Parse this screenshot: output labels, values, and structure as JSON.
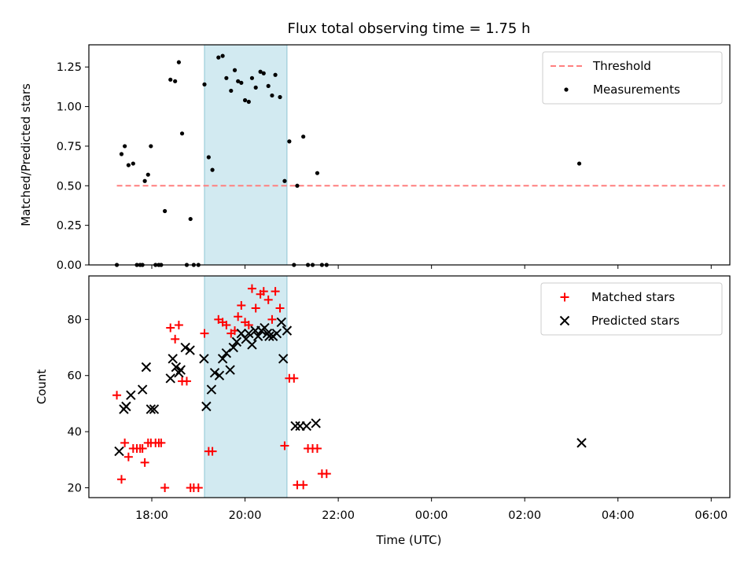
{
  "colors": {
    "shade": "#ADD8E6",
    "threshold": "#FF7F7F",
    "measurement": "#000000",
    "matched": "#FF0000",
    "predicted": "#000000"
  },
  "chart_data": [
    {
      "id": "ratio",
      "type": "scatter",
      "title": "Flux total observing time = 1.75 h",
      "xlabel": "",
      "ylabel": "Matched/Predicted stars",
      "xlim": [
        16.65,
        30.4
      ],
      "ylim": [
        0,
        1.39
      ],
      "yticks": [
        0,
        0.25,
        0.5,
        0.75,
        1.0,
        1.25
      ],
      "ytick_labels": [
        "0.00",
        "0.25",
        "0.50",
        "0.75",
        "1.00",
        "1.25"
      ],
      "shaded_span": [
        19.13,
        20.9
      ],
      "legend": {
        "placement": "top-right",
        "entries": [
          "Threshold",
          "Measurements"
        ]
      },
      "threshold": {
        "name": "Threshold",
        "x": [
          17.25,
          30.3
        ],
        "y": 0.5,
        "style": "dashed"
      },
      "series": [
        {
          "name": "Measurements",
          "marker": "dot",
          "x": [
            17.25,
            17.35,
            17.42,
            17.5,
            17.6,
            17.68,
            17.75,
            17.8,
            17.85,
            17.92,
            17.98,
            18.08,
            18.15,
            18.2,
            18.28,
            18.4,
            18.5,
            18.58,
            18.65,
            18.75,
            18.83,
            18.9,
            19.0,
            19.13,
            19.22,
            19.3,
            19.43,
            19.52,
            19.6,
            19.7,
            19.78,
            19.85,
            19.92,
            20.0,
            20.08,
            20.15,
            20.23,
            20.33,
            20.4,
            20.5,
            20.58,
            20.65,
            20.75,
            20.85,
            20.95,
            21.05,
            21.12,
            21.25,
            21.35,
            21.45,
            21.55,
            21.65,
            21.75,
            27.17
          ],
          "y": [
            0,
            0.7,
            0.75,
            0.63,
            0.64,
            0,
            0,
            0,
            0.53,
            0.57,
            0.75,
            0,
            0,
            0,
            0.34,
            1.17,
            1.16,
            1.28,
            0.83,
            0,
            0.29,
            0,
            0,
            1.14,
            0.68,
            0.6,
            1.31,
            1.32,
            1.18,
            1.1,
            1.23,
            1.16,
            1.15,
            1.04,
            1.03,
            1.18,
            1.12,
            1.22,
            1.21,
            1.13,
            1.07,
            1.2,
            1.06,
            0.53,
            0.78,
            0,
            0.5,
            0.81,
            0,
            0,
            0.58,
            0,
            0,
            0.64
          ]
        }
      ]
    },
    {
      "id": "counts",
      "type": "scatter",
      "title": "",
      "xlabel": "Time (UTC)",
      "ylabel": "Count",
      "xlim": [
        16.65,
        30.4
      ],
      "ylim": [
        16.5,
        95.5
      ],
      "xticks": [
        18,
        20,
        22,
        24,
        26,
        28,
        30
      ],
      "xtick_labels": [
        "18:00",
        "20:00",
        "22:00",
        "00:00",
        "02:00",
        "04:00",
        "06:00"
      ],
      "yticks": [
        20,
        40,
        60,
        80
      ],
      "ytick_labels": [
        "20",
        "40",
        "60",
        "80"
      ],
      "shaded_span": [
        19.13,
        20.9
      ],
      "legend": {
        "placement": "top-right",
        "entries": [
          "Matched stars",
          "Predicted stars"
        ]
      },
      "series": [
        {
          "name": "Matched stars",
          "marker": "plus",
          "x": [
            17.25,
            17.35,
            17.42,
            17.5,
            17.6,
            17.68,
            17.75,
            17.8,
            17.85,
            17.92,
            17.98,
            18.08,
            18.15,
            18.2,
            18.28,
            18.4,
            18.5,
            18.58,
            18.65,
            18.75,
            18.83,
            18.9,
            19.0,
            19.13,
            19.22,
            19.3,
            19.43,
            19.52,
            19.6,
            19.7,
            19.78,
            19.85,
            19.92,
            20.0,
            20.08,
            20.15,
            20.23,
            20.33,
            20.4,
            20.5,
            20.58,
            20.65,
            20.75,
            20.85,
            20.95,
            21.05,
            21.12,
            21.25,
            21.35,
            21.45,
            21.55,
            21.65,
            21.75
          ],
          "y": [
            53,
            23,
            36,
            31,
            34,
            34,
            34,
            34,
            29,
            36,
            36,
            36,
            36,
            36,
            20,
            77,
            73,
            78,
            58,
            58,
            20,
            20,
            20,
            75,
            33,
            33,
            80,
            79,
            78,
            75,
            76,
            81,
            85,
            79,
            78,
            91,
            84,
            89,
            90,
            87,
            80,
            90,
            84,
            35,
            59,
            59,
            21,
            21,
            34,
            34,
            34,
            25,
            25
          ]
        },
        {
          "name": "Predicted stars",
          "marker": "x",
          "x": [
            17.3,
            17.4,
            17.45,
            17.55,
            17.8,
            17.88,
            17.98,
            18.05,
            18.4,
            18.45,
            18.52,
            18.58,
            18.62,
            18.72,
            18.82,
            19.12,
            19.17,
            19.28,
            19.35,
            19.45,
            19.52,
            19.6,
            19.68,
            19.75,
            19.82,
            19.92,
            20.02,
            20.08,
            20.15,
            20.22,
            20.28,
            20.35,
            20.42,
            20.48,
            20.52,
            20.6,
            20.68,
            20.78,
            20.82,
            20.9,
            21.08,
            21.18,
            21.32,
            21.52,
            27.22
          ],
          "y": [
            33,
            48,
            49,
            53,
            55,
            63,
            48,
            48,
            59,
            66,
            63,
            61,
            62,
            70,
            69,
            66,
            49,
            55,
            61,
            60,
            66,
            68,
            62,
            70,
            72,
            75,
            73,
            75,
            71,
            76,
            74,
            76,
            77,
            75,
            74,
            74,
            75,
            79,
            66,
            76,
            42,
            42,
            42,
            43,
            36
          ]
        }
      ]
    }
  ]
}
